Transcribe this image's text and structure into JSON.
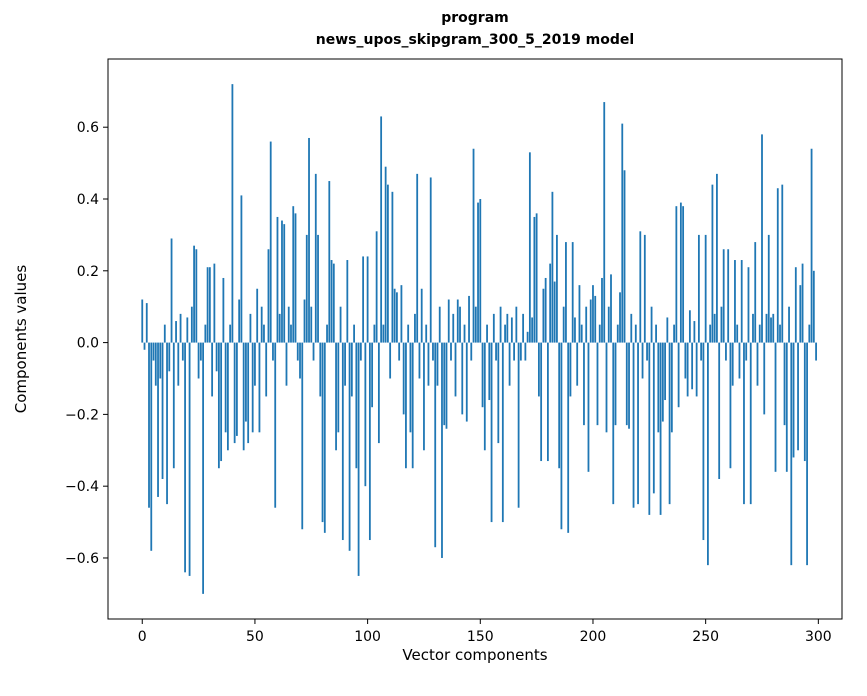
{
  "figure": {
    "title_line1": "program",
    "title_line2": "news_upos_skipgram_300_5_2019 model",
    "xlabel": "Vector components",
    "ylabel": "Components values",
    "background_color": "#ffffff",
    "text_color": "#000000"
  },
  "chart_data": {
    "type": "bar",
    "title": "program\nnews_upos_skipgram_300_5_2019 model",
    "xlabel": "Vector components",
    "ylabel": "Components values",
    "legend": null,
    "grid": false,
    "bar_color": "#1f77b4",
    "bar_width": 0.8,
    "x_start": 0,
    "xlim": [
      -15.2,
      310.5
    ],
    "ylim": [
      -0.77,
      0.79
    ],
    "xticks": [
      0,
      50,
      100,
      150,
      200,
      250,
      300
    ],
    "xtick_labels": [
      "0",
      "50",
      "100",
      "150",
      "200",
      "250",
      "300"
    ],
    "yticks": [
      -0.6,
      -0.4,
      -0.2,
      0.0,
      0.2,
      0.4,
      0.6
    ],
    "ytick_labels": [
      "−0.6",
      "−0.4",
      "−0.2",
      "0.0",
      "0.2",
      "0.4",
      "0.6"
    ],
    "values": [
      0.12,
      -0.02,
      0.11,
      -0.46,
      -0.58,
      -0.05,
      -0.12,
      -0.43,
      -0.1,
      -0.38,
      0.05,
      -0.45,
      -0.08,
      0.29,
      -0.35,
      0.06,
      -0.12,
      0.08,
      -0.05,
      -0.64,
      0.07,
      -0.65,
      0.1,
      0.27,
      0.26,
      -0.1,
      -0.05,
      -0.7,
      0.05,
      0.21,
      0.21,
      -0.15,
      0.22,
      -0.08,
      -0.35,
      -0.33,
      0.18,
      -0.25,
      -0.3,
      0.05,
      0.72,
      -0.28,
      -0.26,
      0.12,
      0.41,
      -0.3,
      -0.22,
      -0.28,
      0.08,
      -0.25,
      -0.12,
      0.15,
      -0.25,
      0.1,
      0.05,
      -0.15,
      0.26,
      0.56,
      -0.05,
      -0.46,
      0.35,
      0.08,
      0.34,
      0.33,
      -0.12,
      0.1,
      0.05,
      0.38,
      0.36,
      -0.05,
      -0.1,
      -0.52,
      0.12,
      0.3,
      0.57,
      0.1,
      -0.05,
      0.47,
      0.3,
      -0.15,
      -0.5,
      -0.53,
      0.05,
      0.45,
      0.23,
      0.22,
      -0.3,
      -0.25,
      0.1,
      -0.55,
      -0.12,
      0.23,
      -0.58,
      -0.15,
      0.05,
      -0.35,
      -0.65,
      -0.05,
      0.24,
      -0.4,
      0.24,
      -0.55,
      -0.18,
      0.05,
      0.31,
      -0.28,
      0.63,
      0.05,
      0.49,
      0.44,
      -0.1,
      0.42,
      0.15,
      0.14,
      -0.05,
      0.16,
      -0.2,
      -0.35,
      0.05,
      -0.25,
      -0.35,
      0.08,
      0.47,
      -0.1,
      0.15,
      -0.3,
      0.05,
      -0.12,
      0.46,
      -0.05,
      -0.57,
      -0.12,
      0.1,
      -0.6,
      -0.23,
      -0.24,
      0.12,
      -0.05,
      0.08,
      -0.15,
      0.12,
      0.1,
      -0.2,
      0.05,
      -0.22,
      0.13,
      -0.05,
      0.54,
      0.1,
      0.39,
      0.4,
      -0.18,
      -0.3,
      0.05,
      -0.16,
      -0.5,
      0.08,
      -0.05,
      -0.28,
      0.1,
      -0.5,
      0.05,
      0.08,
      -0.12,
      0.07,
      -0.05,
      0.1,
      -0.46,
      -0.05,
      0.08,
      -0.05,
      0.03,
      0.53,
      0.07,
      0.35,
      0.36,
      -0.15,
      -0.33,
      0.15,
      0.18,
      -0.33,
      0.22,
      0.42,
      0.17,
      0.3,
      -0.35,
      -0.52,
      0.1,
      0.28,
      -0.53,
      -0.15,
      0.28,
      0.07,
      -0.12,
      0.16,
      0.05,
      -0.23,
      0.1,
      -0.36,
      0.12,
      0.16,
      0.13,
      -0.23,
      0.05,
      0.18,
      0.67,
      -0.25,
      0.1,
      0.19,
      -0.45,
      -0.23,
      0.05,
      0.14,
      0.61,
      0.48,
      -0.23,
      -0.24,
      0.08,
      -0.46,
      0.05,
      -0.45,
      0.31,
      -0.1,
      0.3,
      -0.05,
      -0.48,
      0.1,
      -0.42,
      0.05,
      -0.25,
      -0.48,
      -0.22,
      -0.16,
      0.07,
      -0.45,
      -0.25,
      0.05,
      0.38,
      -0.18,
      0.39,
      0.38,
      -0.1,
      -0.15,
      0.09,
      -0.13,
      0.06,
      -0.15,
      0.3,
      -0.05,
      -0.55,
      0.3,
      -0.62,
      0.05,
      0.44,
      0.08,
      0.47,
      -0.38,
      0.1,
      0.26,
      -0.05,
      0.26,
      -0.35,
      -0.12,
      0.23,
      0.05,
      -0.1,
      0.23,
      -0.45,
      -0.05,
      0.21,
      -0.45,
      0.08,
      0.28,
      -0.12,
      0.05,
      0.58,
      -0.2,
      0.08,
      0.3,
      0.07,
      0.08,
      -0.36,
      0.43,
      0.05,
      0.44,
      -0.23,
      -0.36,
      0.1,
      -0.62,
      -0.32,
      0.21,
      -0.3,
      0.16,
      0.22,
      -0.33,
      -0.62,
      0.05,
      0.54,
      0.2,
      -0.05
    ]
  }
}
